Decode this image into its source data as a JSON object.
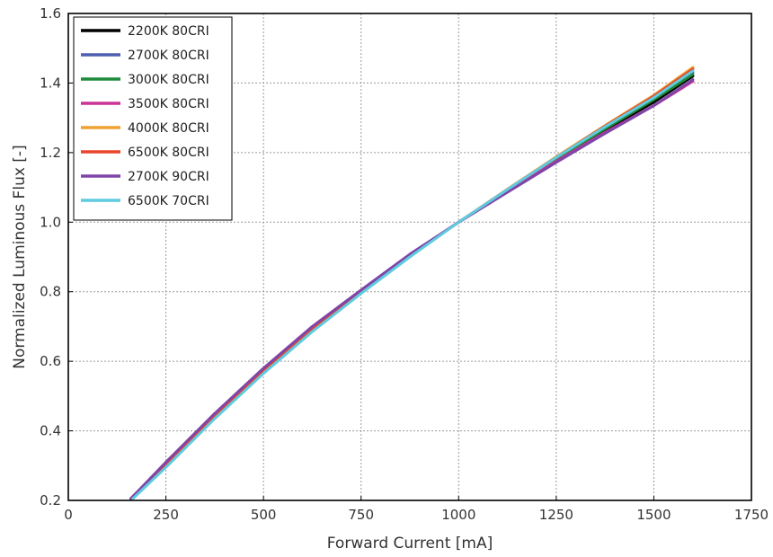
{
  "chart_data": {
    "type": "line",
    "title": "",
    "xlabel": "Forward Current [mA]",
    "ylabel": "Normalized Luminous Flux [-]",
    "xlim": [
      0,
      1750
    ],
    "ylim": [
      0.2,
      1.6
    ],
    "xticks": [
      0,
      250,
      500,
      750,
      1000,
      1250,
      1500,
      1750
    ],
    "yticks": [
      0.2,
      0.4,
      0.6,
      0.8,
      1.0,
      1.2,
      1.4,
      1.6
    ],
    "xtick_labels": [
      "0",
      "250",
      "500",
      "750",
      "1000",
      "1250",
      "1500",
      "1750"
    ],
    "ytick_labels": [
      "0.2",
      "0.4",
      "0.6",
      "0.8",
      "1.0",
      "1.2",
      "1.4",
      "1.6"
    ],
    "grid": true,
    "legend_position": "top-left",
    "series": [
      {
        "name": "2200K 80CRI",
        "color": "#000000",
        "x": [
          160,
          250,
          375,
          500,
          625,
          750,
          875,
          1000,
          1125,
          1250,
          1375,
          1500,
          1600
        ],
        "y": [
          0.205,
          0.305,
          0.445,
          0.575,
          0.695,
          0.8,
          0.905,
          1.0,
          1.09,
          1.18,
          1.265,
          1.345,
          1.42
        ]
      },
      {
        "name": "2700K 80CRI",
        "color": "#4f5fb0",
        "x": [
          160,
          250,
          375,
          500,
          625,
          750,
          875,
          1000,
          1125,
          1250,
          1375,
          1500,
          1600
        ],
        "y": [
          0.205,
          0.305,
          0.445,
          0.575,
          0.695,
          0.8,
          0.905,
          1.0,
          1.092,
          1.182,
          1.27,
          1.355,
          1.43
        ]
      },
      {
        "name": "3000K 80CRI",
        "color": "#1f8a3a",
        "x": [
          160,
          250,
          375,
          500,
          625,
          750,
          875,
          1000,
          1125,
          1250,
          1375,
          1500,
          1600
        ],
        "y": [
          0.205,
          0.305,
          0.445,
          0.575,
          0.695,
          0.8,
          0.905,
          1.0,
          1.092,
          1.182,
          1.268,
          1.352,
          1.425
        ]
      },
      {
        "name": "3500K 80CRI",
        "color": "#cc3399",
        "x": [
          160,
          250,
          375,
          500,
          625,
          750,
          875,
          1000,
          1125,
          1250,
          1375,
          1500,
          1600
        ],
        "y": [
          0.205,
          0.305,
          0.445,
          0.575,
          0.695,
          0.8,
          0.905,
          1.0,
          1.088,
          1.175,
          1.258,
          1.335,
          1.405
        ]
      },
      {
        "name": "4000K 80CRI",
        "color": "#f0a030",
        "x": [
          160,
          250,
          375,
          500,
          625,
          750,
          875,
          1000,
          1125,
          1250,
          1375,
          1500,
          1600
        ],
        "y": [
          0.205,
          0.305,
          0.445,
          0.575,
          0.695,
          0.8,
          0.905,
          1.0,
          1.095,
          1.188,
          1.278,
          1.365,
          1.445
        ]
      },
      {
        "name": "6500K 80CRI",
        "color": "#e8452a",
        "x": [
          160,
          250,
          375,
          500,
          625,
          750,
          875,
          1000,
          1125,
          1250,
          1375,
          1500,
          1600
        ],
        "y": [
          0.205,
          0.305,
          0.445,
          0.575,
          0.695,
          0.8,
          0.905,
          1.0,
          1.094,
          1.186,
          1.276,
          1.362,
          1.44
        ]
      },
      {
        "name": "2700K 90CRI",
        "color": "#8044a8",
        "x": [
          160,
          250,
          375,
          500,
          625,
          750,
          875,
          1000,
          1125,
          1250,
          1375,
          1500,
          1600
        ],
        "y": [
          0.205,
          0.31,
          0.45,
          0.58,
          0.7,
          0.805,
          0.908,
          1.0,
          1.086,
          1.172,
          1.255,
          1.335,
          1.41
        ]
      },
      {
        "name": "6500K 70CRI",
        "color": "#5fcbe0",
        "x": [
          165,
          250,
          375,
          500,
          625,
          750,
          875,
          1000,
          1125,
          1250,
          1375,
          1500,
          1600
        ],
        "y": [
          0.205,
          0.295,
          0.435,
          0.565,
          0.685,
          0.795,
          0.9,
          1.0,
          1.094,
          1.186,
          1.274,
          1.358,
          1.435
        ]
      }
    ]
  }
}
